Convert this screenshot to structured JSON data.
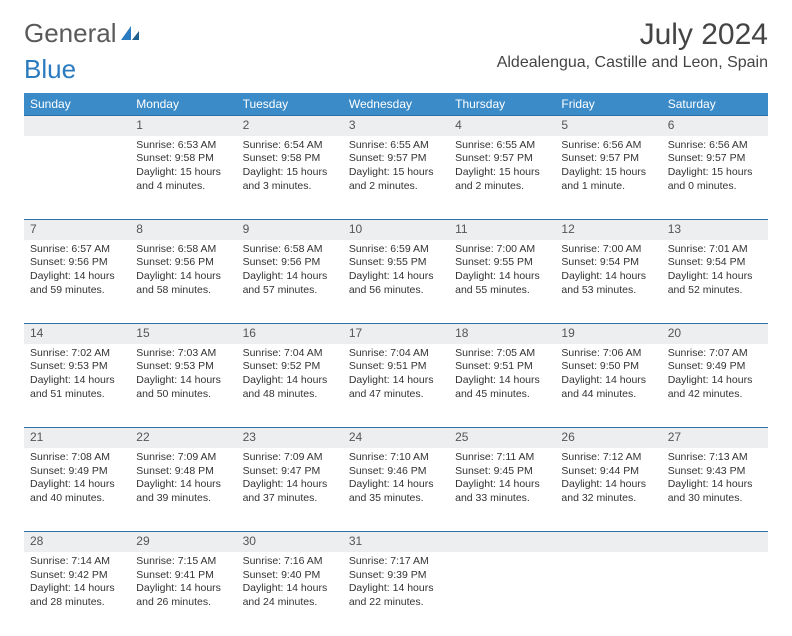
{
  "brand": {
    "part1": "General",
    "part2": "Blue"
  },
  "title": "July 2024",
  "location": "Aldealengua, Castille and Leon, Spain",
  "colors": {
    "header_bg": "#3b8bc9",
    "header_text": "#ffffff",
    "daynum_bg": "#eceeef",
    "daynum_border": "#2a6fa8",
    "text": "#333333",
    "brand_gray": "#5a5a5a",
    "brand_blue": "#2a7bbf"
  },
  "weekdays": [
    "Sunday",
    "Monday",
    "Tuesday",
    "Wednesday",
    "Thursday",
    "Friday",
    "Saturday"
  ],
  "weeks": [
    {
      "nums": [
        "",
        "1",
        "2",
        "3",
        "4",
        "5",
        "6"
      ],
      "cells": [
        null,
        {
          "sunrise": "Sunrise: 6:53 AM",
          "sunset": "Sunset: 9:58 PM",
          "day1": "Daylight: 15 hours",
          "day2": "and 4 minutes."
        },
        {
          "sunrise": "Sunrise: 6:54 AM",
          "sunset": "Sunset: 9:58 PM",
          "day1": "Daylight: 15 hours",
          "day2": "and 3 minutes."
        },
        {
          "sunrise": "Sunrise: 6:55 AM",
          "sunset": "Sunset: 9:57 PM",
          "day1": "Daylight: 15 hours",
          "day2": "and 2 minutes."
        },
        {
          "sunrise": "Sunrise: 6:55 AM",
          "sunset": "Sunset: 9:57 PM",
          "day1": "Daylight: 15 hours",
          "day2": "and 2 minutes."
        },
        {
          "sunrise": "Sunrise: 6:56 AM",
          "sunset": "Sunset: 9:57 PM",
          "day1": "Daylight: 15 hours",
          "day2": "and 1 minute."
        },
        {
          "sunrise": "Sunrise: 6:56 AM",
          "sunset": "Sunset: 9:57 PM",
          "day1": "Daylight: 15 hours",
          "day2": "and 0 minutes."
        }
      ]
    },
    {
      "nums": [
        "7",
        "8",
        "9",
        "10",
        "11",
        "12",
        "13"
      ],
      "cells": [
        {
          "sunrise": "Sunrise: 6:57 AM",
          "sunset": "Sunset: 9:56 PM",
          "day1": "Daylight: 14 hours",
          "day2": "and 59 minutes."
        },
        {
          "sunrise": "Sunrise: 6:58 AM",
          "sunset": "Sunset: 9:56 PM",
          "day1": "Daylight: 14 hours",
          "day2": "and 58 minutes."
        },
        {
          "sunrise": "Sunrise: 6:58 AM",
          "sunset": "Sunset: 9:56 PM",
          "day1": "Daylight: 14 hours",
          "day2": "and 57 minutes."
        },
        {
          "sunrise": "Sunrise: 6:59 AM",
          "sunset": "Sunset: 9:55 PM",
          "day1": "Daylight: 14 hours",
          "day2": "and 56 minutes."
        },
        {
          "sunrise": "Sunrise: 7:00 AM",
          "sunset": "Sunset: 9:55 PM",
          "day1": "Daylight: 14 hours",
          "day2": "and 55 minutes."
        },
        {
          "sunrise": "Sunrise: 7:00 AM",
          "sunset": "Sunset: 9:54 PM",
          "day1": "Daylight: 14 hours",
          "day2": "and 53 minutes."
        },
        {
          "sunrise": "Sunrise: 7:01 AM",
          "sunset": "Sunset: 9:54 PM",
          "day1": "Daylight: 14 hours",
          "day2": "and 52 minutes."
        }
      ]
    },
    {
      "nums": [
        "14",
        "15",
        "16",
        "17",
        "18",
        "19",
        "20"
      ],
      "cells": [
        {
          "sunrise": "Sunrise: 7:02 AM",
          "sunset": "Sunset: 9:53 PM",
          "day1": "Daylight: 14 hours",
          "day2": "and 51 minutes."
        },
        {
          "sunrise": "Sunrise: 7:03 AM",
          "sunset": "Sunset: 9:53 PM",
          "day1": "Daylight: 14 hours",
          "day2": "and 50 minutes."
        },
        {
          "sunrise": "Sunrise: 7:04 AM",
          "sunset": "Sunset: 9:52 PM",
          "day1": "Daylight: 14 hours",
          "day2": "and 48 minutes."
        },
        {
          "sunrise": "Sunrise: 7:04 AM",
          "sunset": "Sunset: 9:51 PM",
          "day1": "Daylight: 14 hours",
          "day2": "and 47 minutes."
        },
        {
          "sunrise": "Sunrise: 7:05 AM",
          "sunset": "Sunset: 9:51 PM",
          "day1": "Daylight: 14 hours",
          "day2": "and 45 minutes."
        },
        {
          "sunrise": "Sunrise: 7:06 AM",
          "sunset": "Sunset: 9:50 PM",
          "day1": "Daylight: 14 hours",
          "day2": "and 44 minutes."
        },
        {
          "sunrise": "Sunrise: 7:07 AM",
          "sunset": "Sunset: 9:49 PM",
          "day1": "Daylight: 14 hours",
          "day2": "and 42 minutes."
        }
      ]
    },
    {
      "nums": [
        "21",
        "22",
        "23",
        "24",
        "25",
        "26",
        "27"
      ],
      "cells": [
        {
          "sunrise": "Sunrise: 7:08 AM",
          "sunset": "Sunset: 9:49 PM",
          "day1": "Daylight: 14 hours",
          "day2": "and 40 minutes."
        },
        {
          "sunrise": "Sunrise: 7:09 AM",
          "sunset": "Sunset: 9:48 PM",
          "day1": "Daylight: 14 hours",
          "day2": "and 39 minutes."
        },
        {
          "sunrise": "Sunrise: 7:09 AM",
          "sunset": "Sunset: 9:47 PM",
          "day1": "Daylight: 14 hours",
          "day2": "and 37 minutes."
        },
        {
          "sunrise": "Sunrise: 7:10 AM",
          "sunset": "Sunset: 9:46 PM",
          "day1": "Daylight: 14 hours",
          "day2": "and 35 minutes."
        },
        {
          "sunrise": "Sunrise: 7:11 AM",
          "sunset": "Sunset: 9:45 PM",
          "day1": "Daylight: 14 hours",
          "day2": "and 33 minutes."
        },
        {
          "sunrise": "Sunrise: 7:12 AM",
          "sunset": "Sunset: 9:44 PM",
          "day1": "Daylight: 14 hours",
          "day2": "and 32 minutes."
        },
        {
          "sunrise": "Sunrise: 7:13 AM",
          "sunset": "Sunset: 9:43 PM",
          "day1": "Daylight: 14 hours",
          "day2": "and 30 minutes."
        }
      ]
    },
    {
      "nums": [
        "28",
        "29",
        "30",
        "31",
        "",
        "",
        ""
      ],
      "cells": [
        {
          "sunrise": "Sunrise: 7:14 AM",
          "sunset": "Sunset: 9:42 PM",
          "day1": "Daylight: 14 hours",
          "day2": "and 28 minutes."
        },
        {
          "sunrise": "Sunrise: 7:15 AM",
          "sunset": "Sunset: 9:41 PM",
          "day1": "Daylight: 14 hours",
          "day2": "and 26 minutes."
        },
        {
          "sunrise": "Sunrise: 7:16 AM",
          "sunset": "Sunset: 9:40 PM",
          "day1": "Daylight: 14 hours",
          "day2": "and 24 minutes."
        },
        {
          "sunrise": "Sunrise: 7:17 AM",
          "sunset": "Sunset: 9:39 PM",
          "day1": "Daylight: 14 hours",
          "day2": "and 22 minutes."
        },
        null,
        null,
        null
      ]
    }
  ]
}
